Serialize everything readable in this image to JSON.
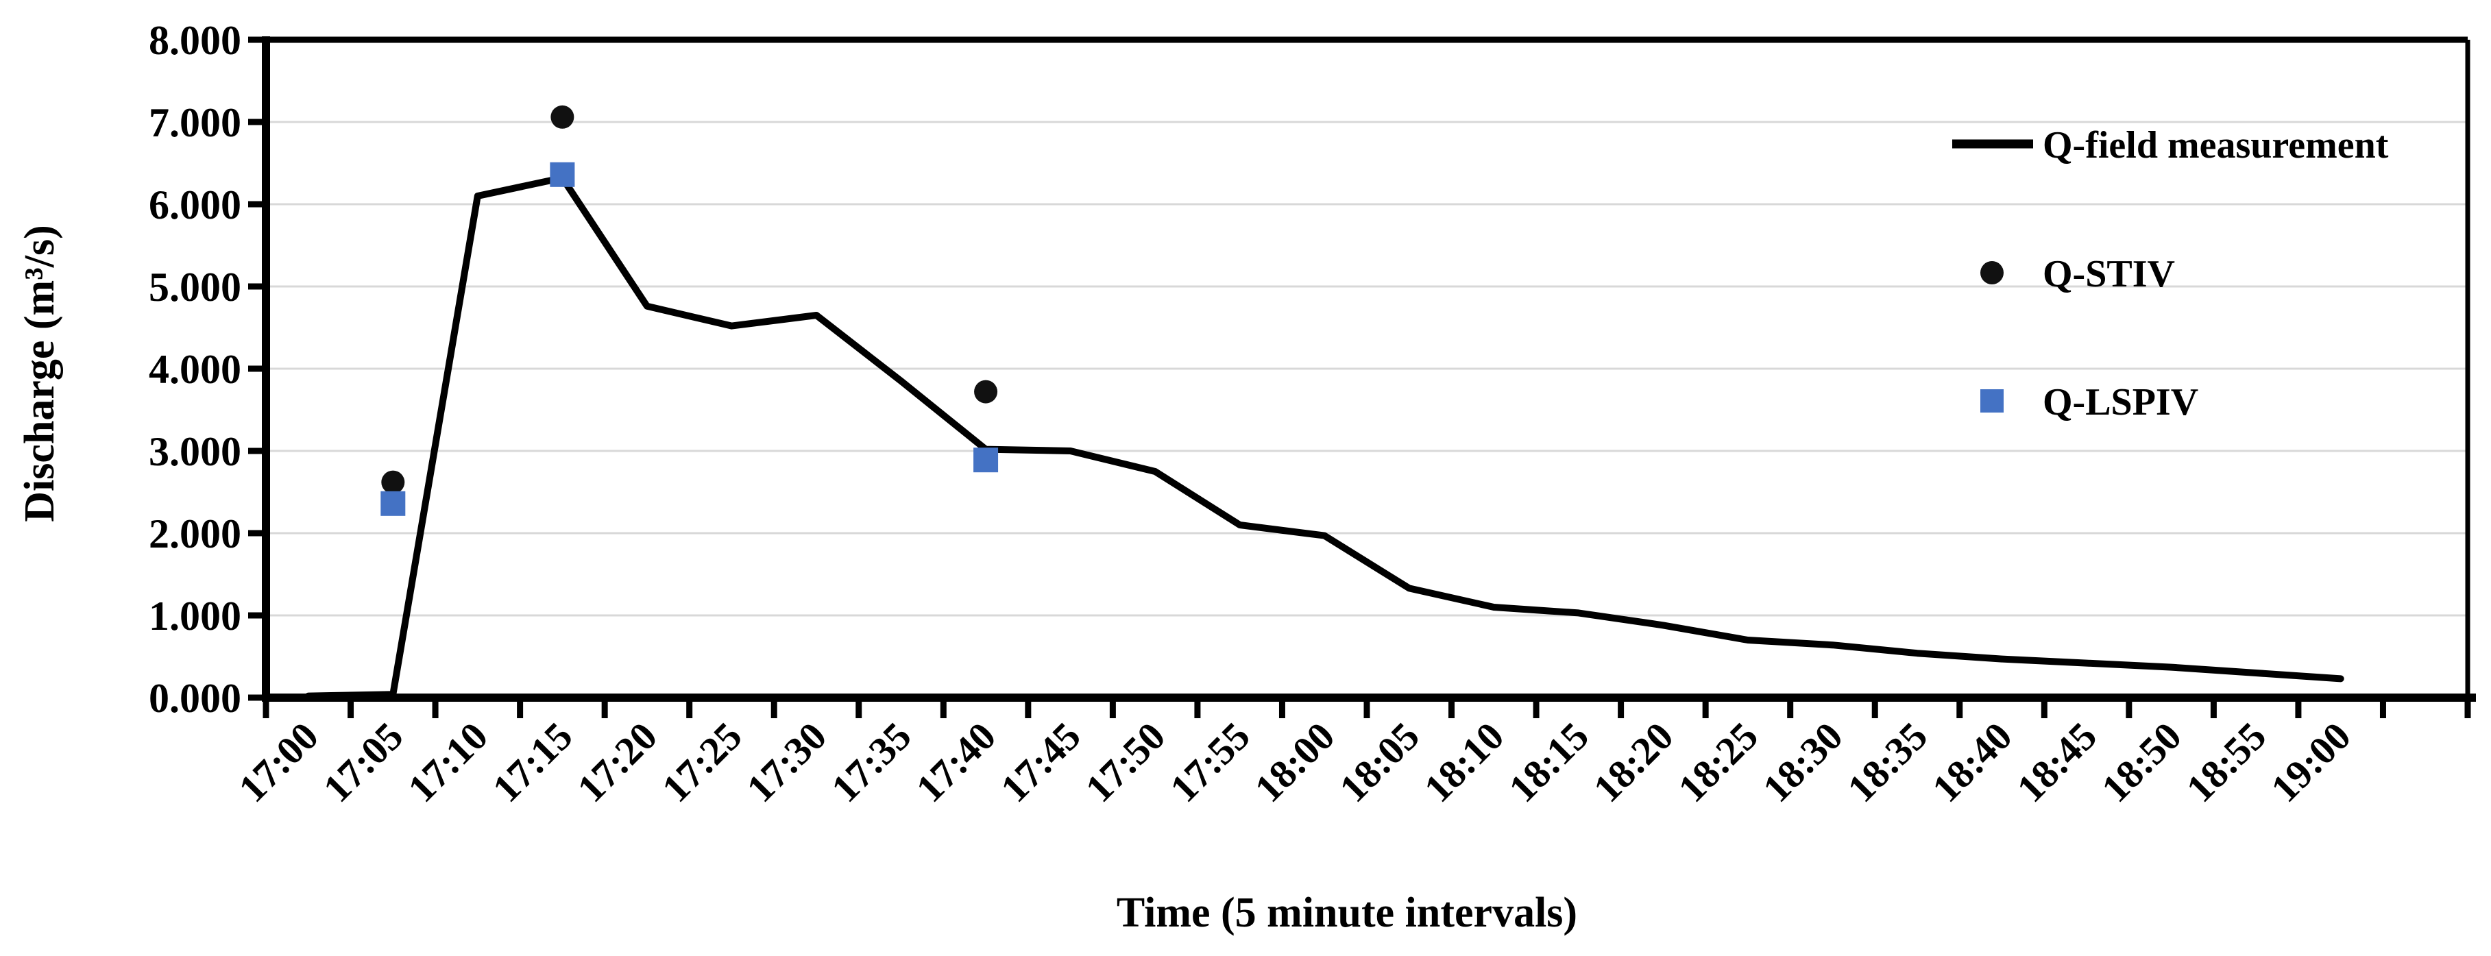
{
  "chart_data": {
    "type": "line",
    "title": "",
    "xlabel": "Time (5 minute intervals)",
    "ylabel": "Discharge (m³/s)",
    "ylim": [
      0,
      8
    ],
    "ytick_step": 1,
    "ytick_labels": [
      "0.000",
      "1.000",
      "2.000",
      "3.000",
      "4.000",
      "5.000",
      "6.000",
      "7.000",
      "8.000"
    ],
    "grid": "horizontal-only",
    "gridline_color": "#d8d8d8",
    "axis_color": "#000000",
    "legend_position": "inside-top-right",
    "categories": [
      "17:00",
      "17:05",
      "17:10",
      "17:15",
      "17:20",
      "17:25",
      "17:30",
      "17:35",
      "17:40",
      "17:45",
      "17:50",
      "17:55",
      "18:00",
      "18:05",
      "18:10",
      "18:15",
      "18:20",
      "18:25",
      "18:30",
      "18:35",
      "18:40",
      "18:45",
      "18:50",
      "18:55",
      "19:00"
    ],
    "series": [
      {
        "name": "Q-field measurement",
        "type": "line",
        "color": "#000000",
        "values": [
          0.02,
          0.04,
          6.1,
          6.32,
          4.76,
          4.52,
          4.65,
          3.85,
          3.02,
          3.0,
          2.75,
          2.1,
          1.97,
          1.33,
          1.1,
          1.03,
          0.88,
          0.7,
          0.64,
          0.54,
          0.47,
          0.42,
          0.37,
          0.3,
          0.23
        ]
      },
      {
        "name": "Q-STIV",
        "type": "scatter",
        "marker": "circle",
        "color": "#111111",
        "points": [
          {
            "x": "17:05",
            "y": 2.62
          },
          {
            "x": "17:15",
            "y": 7.06
          },
          {
            "x": "17:40",
            "y": 3.72
          }
        ]
      },
      {
        "name": "Q-LSPIV",
        "type": "scatter",
        "marker": "square",
        "color": "#4472c4",
        "points": [
          {
            "x": "17:05",
            "y": 2.36
          },
          {
            "x": "17:15",
            "y": 6.36
          },
          {
            "x": "17:40",
            "y": 2.89
          }
        ]
      }
    ]
  }
}
